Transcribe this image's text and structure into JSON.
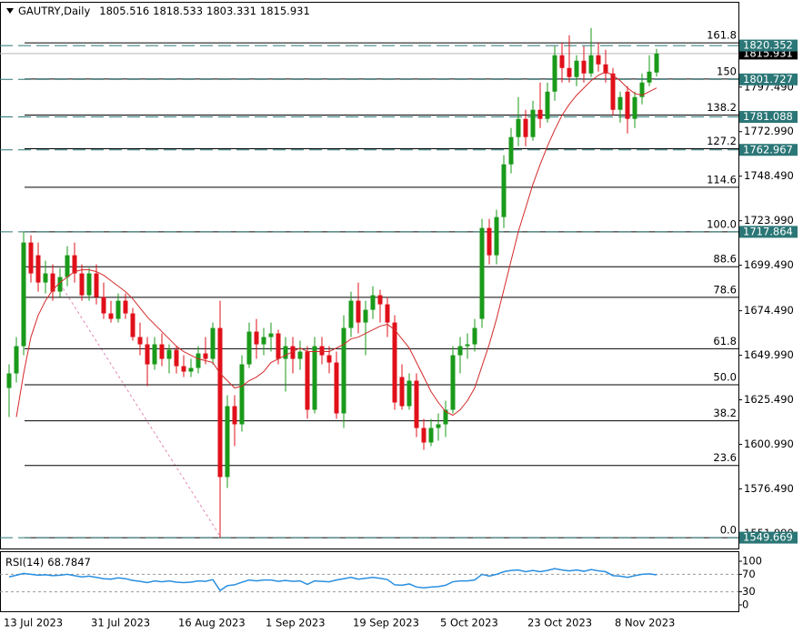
{
  "chart_data": [
    {
      "type": "candlestick",
      "title": "GAUTRY,Daily",
      "categories": [
        "13 Jul 2023",
        null,
        null,
        null,
        null,
        null,
        null,
        null,
        null,
        null,
        null,
        null,
        "31 Jul 2023",
        null,
        null,
        null,
        null,
        null,
        null,
        null,
        null,
        null,
        null,
        null,
        "16 Aug 2023",
        null,
        null,
        null,
        null,
        null,
        null,
        null,
        null,
        null,
        null,
        null,
        "1 Sep 2023",
        null,
        null,
        null,
        null,
        null,
        null,
        null,
        null,
        null,
        null,
        null,
        "19 Sep 2023",
        null,
        null,
        null,
        null,
        null,
        null,
        null,
        null,
        null,
        null,
        null,
        "5 Oct 2023",
        null,
        null,
        null,
        null,
        null,
        null,
        null,
        null,
        null,
        null,
        null,
        "23 Oct 2023",
        null,
        null,
        null,
        null,
        null,
        null,
        null,
        null,
        null,
        null,
        null,
        "8 Nov 2023",
        null,
        null,
        null,
        null,
        null
      ],
      "open": [
        1632,
        1640,
        1655,
        1712,
        1705,
        1690,
        1695,
        1685,
        1693,
        1705,
        1695,
        1683,
        1695,
        1682,
        1673,
        1670,
        1680,
        1673,
        1660,
        1656,
        1645,
        1656,
        1648,
        1653,
        1644,
        1641,
        1643,
        1651,
        1648,
        1665,
        1583,
        1622,
        1612,
        1645,
        1663,
        1656,
        1660,
        1662,
        1648,
        1655,
        1648,
        1652,
        1620,
        1655,
        1650,
        1646,
        1618,
        1665,
        1680,
        1668,
        1675,
        1683,
        1678,
        1668,
        1638,
        1622,
        1636,
        1610,
        1602,
        1610,
        1612,
        1620,
        1650,
        1655,
        1656,
        1670,
        1720,
        1705,
        1726,
        1755,
        1770,
        1780,
        1770,
        1785,
        1780,
        1795,
        1815,
        1808,
        1803,
        1812,
        1805,
        1815,
        1810,
        1805,
        1785,
        1795,
        1780,
        1792,
        1800,
        1805.516
      ],
      "high": [
        1645,
        1660,
        1718,
        1716,
        1712,
        1702,
        1700,
        1698,
        1710,
        1712,
        1700,
        1698,
        1700,
        1690,
        1680,
        1684,
        1684,
        1676,
        1668,
        1660,
        1660,
        1662,
        1656,
        1655,
        1650,
        1648,
        1655,
        1660,
        1668,
        1680,
        1628,
        1628,
        1650,
        1668,
        1670,
        1665,
        1668,
        1664,
        1660,
        1660,
        1658,
        1655,
        1660,
        1660,
        1655,
        1652,
        1672,
        1685,
        1690,
        1680,
        1688,
        1686,
        1682,
        1672,
        1645,
        1640,
        1640,
        1615,
        1615,
        1618,
        1625,
        1655,
        1660,
        1662,
        1670,
        1725,
        1725,
        1730,
        1760,
        1775,
        1792,
        1785,
        1790,
        1800,
        1800,
        1820,
        1822,
        1826,
        1815,
        1820,
        1830,
        1822,
        1818,
        1808,
        1795,
        1798,
        1795,
        1805,
        1815,
        1818.533
      ],
      "low": [
        1616,
        1635,
        1650,
        1690,
        1685,
        1684,
        1680,
        1682,
        1688,
        1690,
        1680,
        1680,
        1678,
        1670,
        1668,
        1668,
        1670,
        1658,
        1650,
        1633,
        1642,
        1644,
        1640,
        1640,
        1638,
        1638,
        1640,
        1645,
        1645,
        1549.669,
        1577,
        1600,
        1608,
        1643,
        1648,
        1650,
        1652,
        1645,
        1630,
        1640,
        1642,
        1615,
        1618,
        1645,
        1640,
        1615,
        1610,
        1660,
        1662,
        1650,
        1670,
        1668,
        1660,
        1620,
        1620,
        1620,
        1605,
        1598,
        1600,
        1603,
        1605,
        1618,
        1640,
        1648,
        1652,
        1665,
        1700,
        1700,
        1720,
        1750,
        1765,
        1765,
        1768,
        1775,
        1778,
        1790,
        1800,
        1800,
        1798,
        1800,
        1803,
        1806,
        1800,
        1782,
        1778,
        1772,
        1775,
        1788,
        1798,
        1803.331
      ],
      "close": [
        1640,
        1655,
        1712,
        1695,
        1690,
        1695,
        1685,
        1693,
        1705,
        1695,
        1683,
        1695,
        1682,
        1673,
        1670,
        1680,
        1673,
        1660,
        1656,
        1645,
        1656,
        1648,
        1653,
        1644,
        1641,
        1643,
        1651,
        1648,
        1665,
        1583,
        1622,
        1612,
        1645,
        1663,
        1656,
        1660,
        1662,
        1648,
        1655,
        1648,
        1652,
        1620,
        1655,
        1650,
        1646,
        1618,
        1665,
        1680,
        1668,
        1675,
        1683,
        1678,
        1668,
        1624,
        1622,
        1636,
        1610,
        1602,
        1610,
        1612,
        1620,
        1650,
        1655,
        1656,
        1665,
        1720,
        1705,
        1726,
        1755,
        1770,
        1780,
        1770,
        1785,
        1780,
        1795,
        1815,
        1808,
        1803,
        1812,
        1805,
        1815,
        1810,
        1805,
        1785,
        1792,
        1780,
        1792,
        1800,
        1806,
        1815.931
      ],
      "ma": [
        null,
        1616,
        1640,
        1660,
        1672,
        1680,
        1686,
        1690,
        1693,
        1696,
        1697,
        1697,
        1696,
        1694,
        1691,
        1688,
        1685,
        1681,
        1676,
        1671,
        1667,
        1663,
        1659,
        1655,
        1652,
        1650,
        1648,
        1647,
        1646,
        1640,
        1636,
        1632,
        1633,
        1636,
        1638,
        1641,
        1646,
        1648,
        1650,
        1652,
        1654,
        1652,
        1652,
        1652,
        1652,
        1654,
        1656,
        1659,
        1660,
        1662,
        1664,
        1666,
        1667,
        1664,
        1659,
        1654,
        1646,
        1638,
        1630,
        1624,
        1619,
        1617,
        1620,
        1625,
        1632,
        1644,
        1656,
        1670,
        1686,
        1702,
        1718,
        1731,
        1744,
        1755,
        1765,
        1774,
        1782,
        1788,
        1793,
        1797,
        1801,
        1804,
        1806,
        1804,
        1801,
        1797,
        1794,
        1793,
        1795,
        1797
      ],
      "up_color": "#1a9a1a",
      "down_color": "#e0101a",
      "ma_color": "#d42a2a",
      "ylim": [
        1543.7,
        1845.4
      ],
      "yticks": [
        {
          "value": 1797.49,
          "label": "1797.490"
        },
        {
          "value": 1772.99,
          "label": "1772.990"
        },
        {
          "value": 1748.49,
          "label": "1748.490"
        },
        {
          "value": 1723.99,
          "label": "1723.990"
        },
        {
          "value": 1699.49,
          "label": "1699.490"
        },
        {
          "value": 1674.49,
          "label": "1674.490"
        },
        {
          "value": 1649.99,
          "label": "1649.990"
        },
        {
          "value": 1625.49,
          "label": "1625.490"
        },
        {
          "value": 1600.99,
          "label": "1600.990"
        },
        {
          "value": 1576.49,
          "label": "1576.490"
        },
        {
          "value": 1551.99,
          "label": "1551.990"
        }
      ],
      "levels": [
        1820.352,
        1801.727,
        1781.088,
        1762.967,
        1717.864,
        1549.669
      ],
      "level_color": "#2b7676",
      "fib_levels": [
        {
          "value": 1549.669,
          "label": "0.0"
        },
        {
          "value": 1589.36,
          "label": "23.6"
        },
        {
          "value": 1613.92,
          "label": "38.2"
        },
        {
          "value": 1633.77,
          "label": "50.0"
        },
        {
          "value": 1653.61,
          "label": "61.8"
        },
        {
          "value": 1681.87,
          "label": "78.6"
        },
        {
          "value": 1698.69,
          "label": "88.6"
        },
        {
          "value": 1717.864,
          "label": "100.0"
        },
        {
          "value": 1742.42,
          "label": "114.6"
        },
        {
          "value": 1763.62,
          "label": "127.2"
        },
        {
          "value": 1782.12,
          "label": "138.2"
        },
        {
          "value": 1801.96,
          "label": "150"
        },
        {
          "value": 1821.81,
          "label": "161.8"
        }
      ],
      "fib_color": "#000000"
    },
    {
      "type": "line",
      "title": "RSI(14)",
      "values": [
        64,
        68,
        72,
        70,
        68,
        69,
        67,
        68,
        70,
        67,
        64,
        66,
        63,
        60,
        59,
        62,
        60,
        56,
        54,
        51,
        55,
        53,
        55,
        52,
        51,
        52,
        55,
        54,
        58,
        33,
        44,
        46,
        52,
        57,
        55,
        57,
        57,
        54,
        56,
        54,
        55,
        47,
        55,
        54,
        53,
        57,
        60,
        63,
        59,
        61,
        63,
        61,
        58,
        46,
        45,
        48,
        41,
        39,
        41,
        42,
        45,
        53,
        55,
        55,
        57,
        70,
        66,
        70,
        76,
        79,
        80,
        76,
        79,
        76,
        79,
        83,
        80,
        78,
        80,
        77,
        81,
        78,
        76,
        67,
        66,
        63,
        67,
        70,
        71,
        68.7847
      ],
      "color": "#2a8fe0",
      "ylim": [
        -14.6,
        116.7
      ],
      "yticks": [
        100,
        70,
        30,
        0
      ],
      "levels": [
        70,
        30
      ]
    }
  ]
}
